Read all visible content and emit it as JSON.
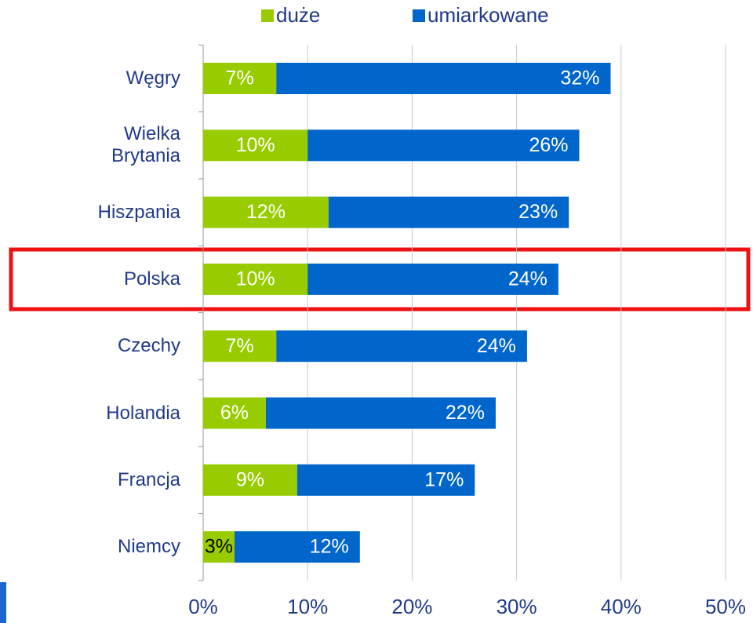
{
  "chart_data": {
    "type": "stacked-barh",
    "categories": [
      "Węgry",
      "Wielka Brytania",
      "Hiszpania",
      "Polska",
      "Czechy",
      "Holandia",
      "Francja",
      "Niemcy"
    ],
    "series": [
      {
        "name": "duże",
        "color": "#99cc00",
        "values": [
          7,
          10,
          12,
          10,
          7,
          6,
          9,
          3
        ],
        "value_labels": [
          "7%",
          "10%",
          "12%",
          "10%",
          "7%",
          "6%",
          "9%",
          "3%"
        ]
      },
      {
        "name": "umiarkowane",
        "color": "#0066cc",
        "values": [
          32,
          26,
          23,
          24,
          24,
          22,
          17,
          12
        ],
        "value_labels": [
          "32%",
          "26%",
          "23%",
          "24%",
          "24%",
          "22%",
          "17%",
          "12%"
        ]
      }
    ],
    "xlim": [
      0,
      50
    ],
    "xticks": [
      {
        "value": 0,
        "label": "0%"
      },
      {
        "value": 10,
        "label": "10%"
      },
      {
        "value": 20,
        "label": "20%"
      },
      {
        "value": 30,
        "label": "30%"
      },
      {
        "value": 40,
        "label": "40%"
      },
      {
        "value": 50,
        "label": "50%"
      }
    ],
    "grid": true,
    "legend": "top"
  }
}
